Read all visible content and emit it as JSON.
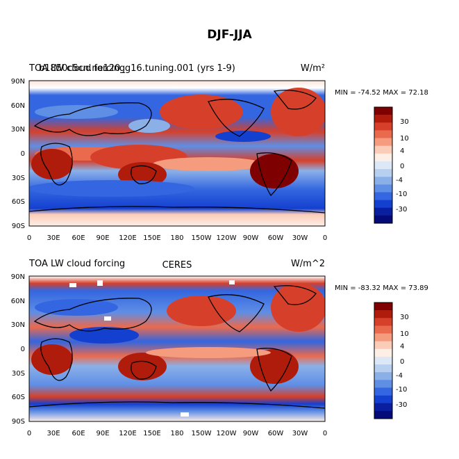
{
  "figure": {
    "title": "DJF-JJA"
  },
  "panels": [
    {
      "left_title": "TOA LW cloud forcing",
      "left_title_overprint": "b1850c5cn.ne120_g16.tuning.001 (yrs 1-9)",
      "center_title": "",
      "units": "W/m²",
      "min_max": "MIN = -74.52  MAX =  72.18",
      "lat_ticks": [
        "90N",
        "60N",
        "30N",
        "0",
        "30S",
        "60S",
        "90S"
      ],
      "lon_ticks": [
        "0",
        "30E",
        "60E",
        "90E",
        "120E",
        "150E",
        "180",
        "150W",
        "120W",
        "90W",
        "60W",
        "30W",
        "0"
      ],
      "colorbar_labels": [
        "30",
        "10",
        "4",
        "0",
        "-4",
        "-10",
        "-30"
      ]
    },
    {
      "left_title": "TOA LW cloud forcing",
      "left_title_overprint": "",
      "center_title": "CERES",
      "units": "W/m^2",
      "min_max": "MIN = -83.32  MAX =  73.89",
      "lat_ticks": [
        "90N",
        "60N",
        "30N",
        "0",
        "30S",
        "60S",
        "90S"
      ],
      "lon_ticks": [
        "0",
        "30E",
        "60E",
        "90E",
        "120E",
        "150E",
        "180",
        "150W",
        "120W",
        "90W",
        "60W",
        "30W",
        "0"
      ],
      "colorbar_labels": [
        "30",
        "10",
        "4",
        "0",
        "-4",
        "-10",
        "-30"
      ]
    }
  ],
  "colors": {
    "scale": [
      "#7f0000",
      "#b01c0c",
      "#d6402a",
      "#ea6a4e",
      "#f59b7e",
      "#fbcdb8",
      "#fdeee6",
      "#dde8f6",
      "#b7d0ef",
      "#8bb0e8",
      "#5f8ee5",
      "#3366e0",
      "#1440d0",
      "#0a1ea0",
      "#040a78"
    ],
    "land_outline": "#000000"
  }
}
